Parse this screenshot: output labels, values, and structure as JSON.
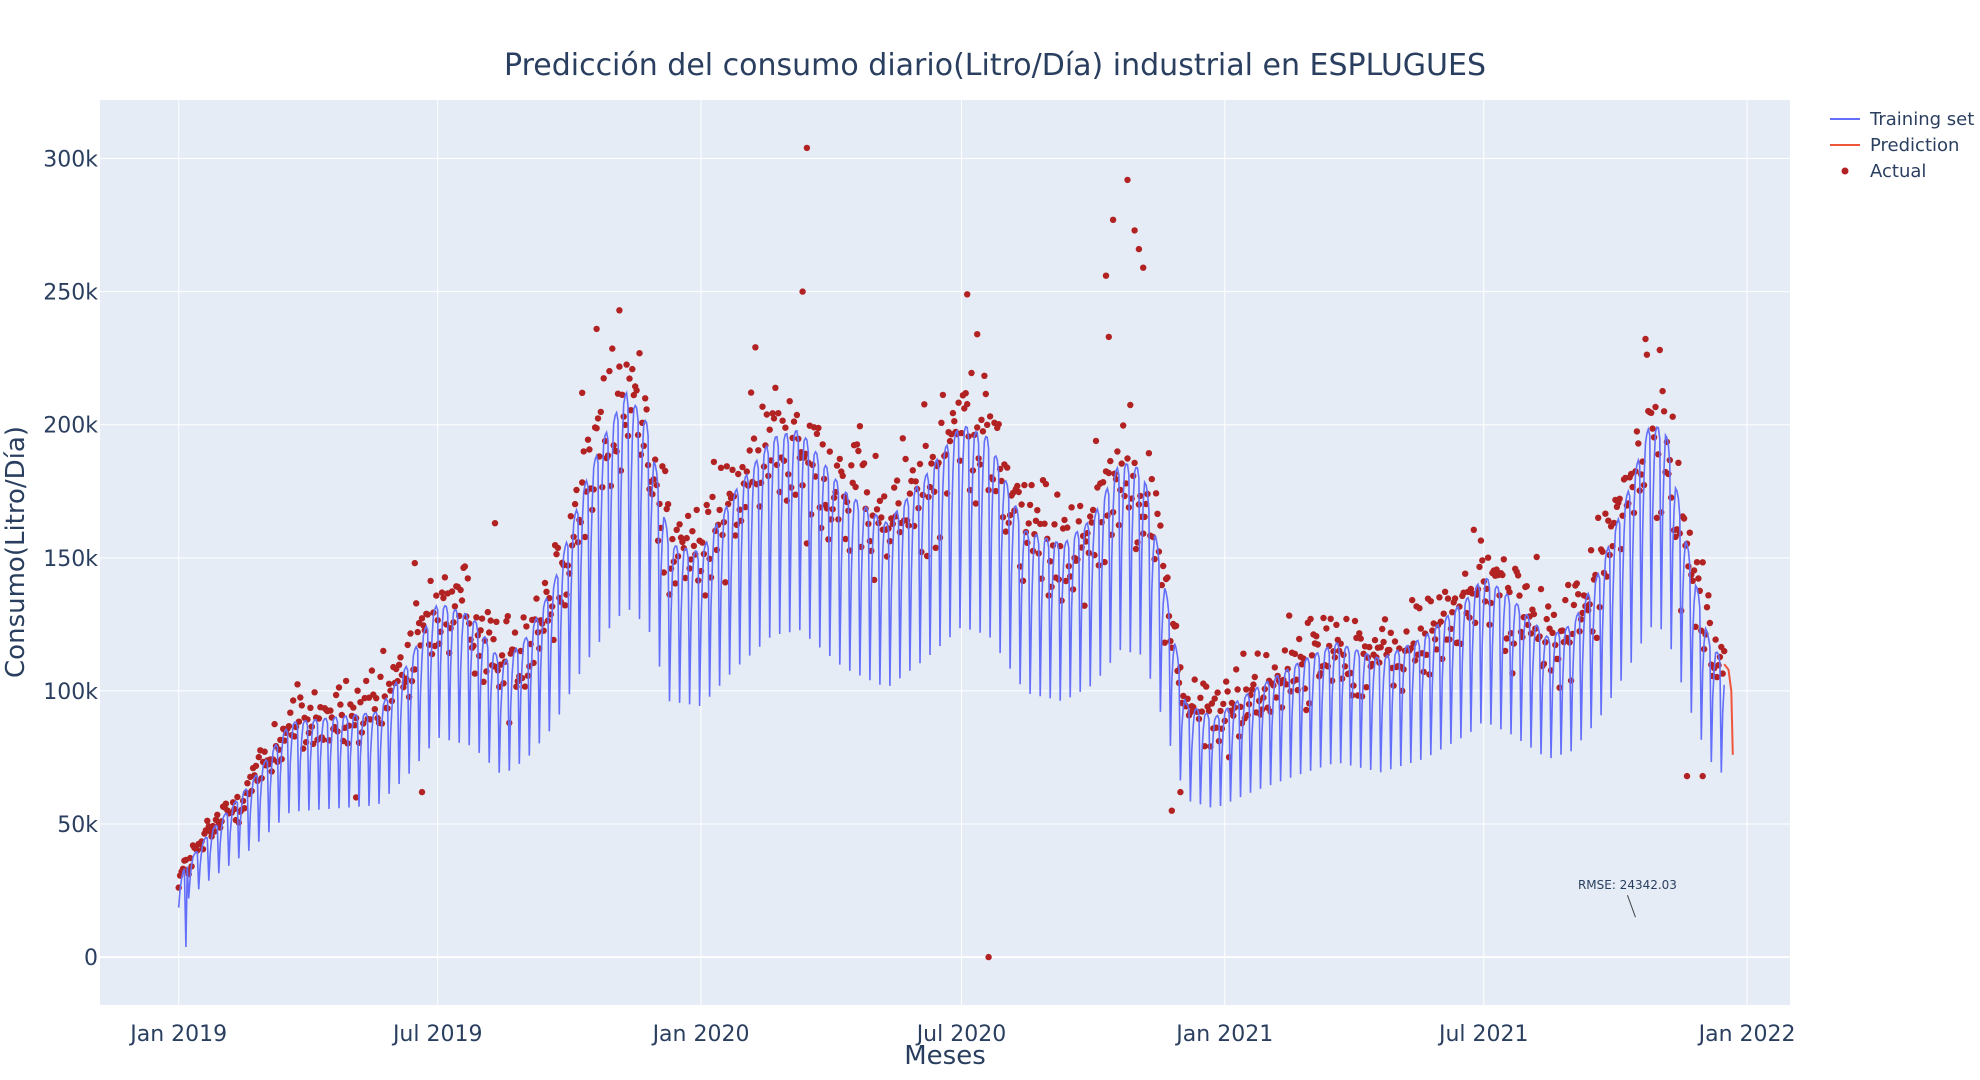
{
  "chart_data": {
    "type": "line",
    "title": "Predicción del consumo diario(Litro/Día) industrial en ESPLUGUES",
    "xlabel": "Meses",
    "ylabel": "Consumo(Litro/Día)",
    "x_range": [
      "2018-11-07",
      "2022-01-31"
    ],
    "ylim": [
      -18000,
      322000
    ],
    "x_ticks": [
      {
        "date": "2019-01-01",
        "label": "Jan 2019"
      },
      {
        "date": "2019-07-01",
        "label": "Jul 2019"
      },
      {
        "date": "2020-01-01",
        "label": "Jan 2020"
      },
      {
        "date": "2020-07-01",
        "label": "Jul 2020"
      },
      {
        "date": "2021-01-01",
        "label": "Jan 2021"
      },
      {
        "date": "2021-07-01",
        "label": "Jul 2021"
      },
      {
        "date": "2022-01-01",
        "label": "Jan 2022"
      }
    ],
    "y_ticks": [
      {
        "value": 0,
        "label": "0"
      },
      {
        "value": 50000,
        "label": "50k"
      },
      {
        "value": 100000,
        "label": "100k"
      },
      {
        "value": 150000,
        "label": "150k"
      },
      {
        "value": 200000,
        "label": "200k"
      },
      {
        "value": 250000,
        "label": "250k"
      },
      {
        "value": 300000,
        "label": "300k"
      }
    ],
    "grid": true,
    "legend_position": "top-right",
    "series": [
      {
        "name": "Training set",
        "type": "line",
        "color": "#636efa",
        "start": "2019-01-01",
        "end": "2021-12-16",
        "weekly_dip": 0.38,
        "envelope": [
          [
            "2019-01-01",
            30000
          ],
          [
            "2019-01-20",
            45000
          ],
          [
            "2019-02-20",
            65000
          ],
          [
            "2019-03-20",
            88000
          ],
          [
            "2019-04-20",
            90000
          ],
          [
            "2019-05-20",
            92000
          ],
          [
            "2019-06-10",
            110000
          ],
          [
            "2019-07-01",
            133000
          ],
          [
            "2019-07-25",
            128000
          ],
          [
            "2019-08-15",
            110000
          ],
          [
            "2019-09-01",
            120000
          ],
          [
            "2019-09-20",
            140000
          ],
          [
            "2019-10-10",
            175000
          ],
          [
            "2019-10-25",
            195000
          ],
          [
            "2019-11-10",
            212000
          ],
          [
            "2019-11-25",
            200000
          ],
          [
            "2019-12-10",
            155000
          ],
          [
            "2020-01-01",
            152000
          ],
          [
            "2020-01-25",
            175000
          ],
          [
            "2020-02-20",
            195000
          ],
          [
            "2020-03-10",
            198000
          ],
          [
            "2020-04-10",
            175000
          ],
          [
            "2020-05-10",
            163000
          ],
          [
            "2020-06-05",
            180000
          ],
          [
            "2020-07-01",
            200000
          ],
          [
            "2020-07-20",
            195000
          ],
          [
            "2020-08-15",
            160000
          ],
          [
            "2020-09-10",
            155000
          ],
          [
            "2020-10-01",
            165000
          ],
          [
            "2020-10-20",
            186000
          ],
          [
            "2020-11-05",
            183000
          ],
          [
            "2020-11-20",
            140000
          ],
          [
            "2020-12-05",
            95000
          ],
          [
            "2020-12-25",
            90000
          ],
          [
            "2021-01-20",
            100000
          ],
          [
            "2021-02-20",
            110000
          ],
          [
            "2021-03-20",
            118000
          ],
          [
            "2021-04-20",
            112000
          ],
          [
            "2021-05-20",
            120000
          ],
          [
            "2021-06-20",
            135000
          ],
          [
            "2021-07-01",
            143000
          ],
          [
            "2021-07-20",
            135000
          ],
          [
            "2021-08-15",
            120000
          ],
          [
            "2021-09-01",
            125000
          ],
          [
            "2021-09-20",
            145000
          ],
          [
            "2021-10-10",
            175000
          ],
          [
            "2021-10-25",
            200000
          ],
          [
            "2021-11-05",
            198000
          ],
          [
            "2021-11-20",
            155000
          ],
          [
            "2021-12-05",
            120000
          ],
          [
            "2021-12-16",
            110000
          ]
        ]
      },
      {
        "name": "Prediction",
        "type": "line",
        "color": "#ef553b",
        "points": [
          [
            "2021-12-16",
            110000
          ],
          [
            "2021-12-19",
            108000
          ],
          [
            "2021-12-21",
            100000
          ],
          [
            "2021-12-22",
            76000
          ]
        ]
      },
      {
        "name": "Actual",
        "type": "scatter",
        "color": "#b22222",
        "noise": 0.15,
        "outliers": [
          [
            "2020-03-15",
            304000
          ],
          [
            "2020-10-25",
            292000
          ],
          [
            "2020-10-15",
            277000
          ],
          [
            "2020-10-30",
            273000
          ],
          [
            "2020-11-02",
            266000
          ],
          [
            "2020-10-10",
            256000
          ],
          [
            "2020-11-05",
            259000
          ],
          [
            "2020-10-12",
            233000
          ],
          [
            "2020-07-05",
            249000
          ],
          [
            "2020-03-12",
            250000
          ],
          [
            "2019-11-05",
            243000
          ],
          [
            "2019-10-20",
            236000
          ],
          [
            "2020-07-12",
            234000
          ],
          [
            "2019-10-10",
            212000
          ],
          [
            "2020-07-20",
            0
          ],
          [
            "2019-05-05",
            60000
          ],
          [
            "2020-11-25",
            55000
          ],
          [
            "2019-06-20",
            62000
          ],
          [
            "2021-11-20",
            68000
          ],
          [
            "2021-12-01",
            68000
          ],
          [
            "2019-08-10",
            163000
          ],
          [
            "2019-06-15",
            148000
          ],
          [
            "2020-12-01",
            62000
          ]
        ]
      }
    ],
    "annotations": [
      {
        "text": "RMSE: 24342.03",
        "x": "2021-10-15",
        "y": 15000
      }
    ]
  }
}
